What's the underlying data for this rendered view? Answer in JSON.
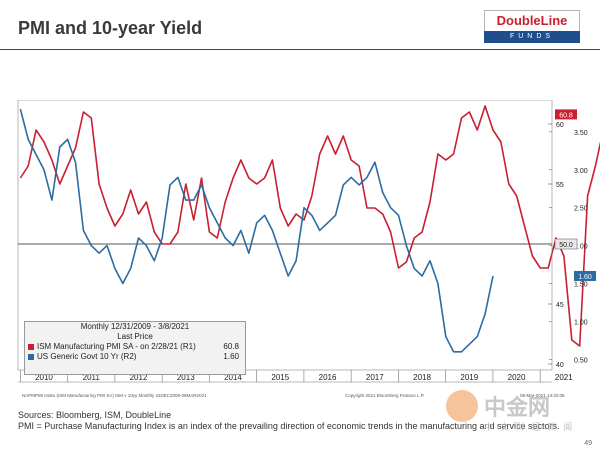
{
  "title": "PMI and 10-year Yield",
  "logo": {
    "name": "DoubleLine",
    "sub": "FUNDS"
  },
  "legend": {
    "header1": "Monthly 12/31/2009 - 3/8/2021",
    "header2": "Last Price",
    "items": [
      {
        "label": "ISM Manufacturing PMI SA - on 2/28/21 (R1)",
        "value": "60.8",
        "color": "#c8202f"
      },
      {
        "label": "US Generic Govt 10 Yr (R2)",
        "value": "1.60",
        "color": "#2b6ca3"
      }
    ]
  },
  "chart_footer": {
    "left": "NAPMPMI Index (ISM Manufacturing PMI SA)  ISM v 10yy  Monthly 31DEC2009-08MAR2021",
    "right": "Copyright 2021 Bloomberg Finance L.P.",
    "date": "08-Mar-2021 13:32:05"
  },
  "footer": {
    "sources": "Sources: Bloomberg, ISM, DoubleLine",
    "note": "PMI = Purchase Manufacturing Index is an index of the prevailing direction of economic trends in the manufacturing and service sectors."
  },
  "watermark": {
    "main": "中金网",
    "sub": "中 文 财 经 新 闻"
  },
  "page_number": "49",
  "colors": {
    "pmi": "#c8202f",
    "yield": "#2b6ca3",
    "axis": "#333333",
    "navy": "#1f4e8c"
  },
  "chart_data": {
    "type": "line",
    "x_tick_labels": [
      "2010",
      "2011",
      "2012",
      "2013",
      "2014",
      "2015",
      "2016",
      "2017",
      "2018",
      "2019",
      "2020",
      "2021"
    ],
    "y_left": {
      "ticks": [
        40,
        45,
        50,
        55,
        60
      ]
    },
    "y_right": {
      "ticks": [
        "0.50",
        "1.00",
        "1.50",
        "2.00",
        "2.50",
        "3.00",
        "3.50"
      ]
    },
    "reference_line": {
      "axis": "left",
      "value": 50,
      "label": "50.0"
    },
    "last_value_labels": [
      {
        "series": "pmi",
        "text": "60.8"
      },
      {
        "series": "yield",
        "text": "1.60"
      }
    ],
    "series": [
      {
        "name": "ISM Manufacturing PMI SA",
        "key": "pmi",
        "axis": "left",
        "x_start": 2010.0,
        "step": 0.1667,
        "values": [
          55.5,
          56.5,
          59.5,
          58.5,
          57.0,
          55.0,
          56.5,
          58.0,
          61.0,
          60.5,
          55.0,
          53.0,
          51.5,
          52.5,
          54.5,
          52.5,
          53.5,
          51.0,
          50.0,
          50.0,
          51.0,
          55.0,
          52.0,
          55.5,
          51.0,
          50.5,
          53.5,
          55.5,
          57.0,
          55.5,
          55.0,
          55.5,
          57.0,
          53.0,
          51.5,
          52.5,
          52.0,
          54.0,
          57.5,
          59.0,
          57.5,
          59.0,
          57.0,
          56.5,
          53.0,
          53.0,
          52.5,
          51.0,
          48.0,
          48.5,
          50.5,
          51.0,
          53.5,
          57.5,
          57.0,
          57.5,
          60.5,
          61.0,
          59.5,
          61.5,
          59.5,
          58.5,
          55.0,
          54.0,
          51.5,
          49.0,
          48.0,
          48.0,
          50.5,
          49.0,
          42.0,
          41.5,
          54.0,
          56.5,
          59.5,
          58.0,
          60.8
        ]
      },
      {
        "name": "US Generic Govt 10 Yr",
        "key": "yield",
        "axis": "right",
        "x_start": 2010.0,
        "step": 0.1667,
        "values": [
          3.8,
          3.4,
          3.2,
          3.0,
          2.6,
          3.3,
          3.4,
          3.1,
          2.2,
          2.0,
          1.9,
          2.0,
          1.7,
          1.5,
          1.7,
          2.1,
          2.0,
          1.8,
          2.1,
          2.8,
          2.9,
          2.6,
          2.6,
          2.8,
          2.5,
          2.3,
          2.1,
          2.0,
          2.2,
          1.9,
          2.3,
          2.4,
          2.2,
          1.9,
          1.6,
          1.8,
          2.5,
          2.4,
          2.2,
          2.3,
          2.4,
          2.8,
          2.9,
          2.8,
          2.9,
          3.1,
          2.7,
          2.5,
          2.4,
          2.0,
          1.7,
          1.6,
          1.8,
          1.5,
          0.8,
          0.6,
          0.6,
          0.7,
          0.8,
          1.1,
          1.6
        ]
      }
    ]
  }
}
